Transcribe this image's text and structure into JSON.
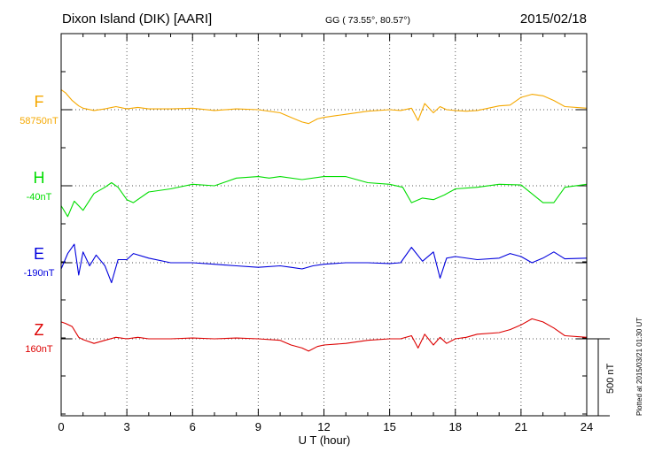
{
  "header": {
    "station": "Dixon Island (DIK)  [AARI]",
    "coords": "GG ( 73.55°,  80.57°)",
    "date": "2015/02/18"
  },
  "footer": {
    "xlabel": "U T (hour)",
    "plotted": "Plotted at 2015/03/21 01:30 UT",
    "scale_label": "500 nT"
  },
  "colors": {
    "F": "#f5a800",
    "H": "#00dd00",
    "E": "#0000dd",
    "Z": "#dd0000"
  },
  "chart_data": {
    "type": "line",
    "x_unit": "hour UT",
    "xlim": [
      0,
      24
    ],
    "xticks": [
      "0",
      "3",
      "6",
      "9",
      "12",
      "15",
      "18",
      "21",
      "24"
    ],
    "scale_nT": 500,
    "series": [
      {
        "key": "F",
        "name": "F",
        "baseline": "58750nT",
        "x": [
          0,
          0.2,
          0.5,
          0.8,
          1,
          1.5,
          2,
          2.5,
          3,
          3.5,
          4,
          5,
          6,
          7,
          8,
          9,
          10,
          10.5,
          11,
          11.3,
          11.7,
          12,
          13,
          14,
          15,
          15.5,
          16,
          16.3,
          16.6,
          17,
          17.3,
          17.6,
          18,
          18.5,
          19,
          20,
          20.5,
          21,
          21.5,
          22,
          22.5,
          23,
          24
        ],
        "y": [
          130,
          110,
          60,
          25,
          10,
          -5,
          5,
          20,
          5,
          15,
          5,
          5,
          10,
          -5,
          5,
          0,
          -20,
          -50,
          -80,
          -90,
          -60,
          -50,
          -30,
          -10,
          0,
          -5,
          10,
          -70,
          40,
          -20,
          20,
          0,
          -5,
          -10,
          -5,
          25,
          30,
          80,
          100,
          90,
          60,
          20,
          10
        ]
      },
      {
        "key": "H",
        "name": "H",
        "baseline": "-40nT",
        "x": [
          0,
          0.3,
          0.6,
          1,
          1.5,
          2,
          2.3,
          2.6,
          3,
          3.3,
          4,
          5,
          6,
          7,
          8,
          9,
          9.5,
          10,
          11,
          12,
          13,
          14,
          15,
          15.6,
          16,
          16.5,
          17,
          17.5,
          18,
          19,
          20,
          21,
          22,
          22.5,
          23,
          24
        ],
        "y": [
          -130,
          -200,
          -100,
          -160,
          -50,
          -10,
          20,
          -10,
          -90,
          -110,
          -40,
          -20,
          10,
          0,
          50,
          60,
          50,
          60,
          40,
          60,
          60,
          20,
          10,
          -10,
          -110,
          -80,
          -90,
          -60,
          -20,
          -10,
          10,
          5,
          -110,
          -110,
          -10,
          10
        ]
      },
      {
        "key": "E",
        "name": "E",
        "baseline": "-190nT",
        "x": [
          0,
          0.3,
          0.6,
          0.8,
          1,
          1.3,
          1.6,
          2,
          2.3,
          2.6,
          3,
          3.3,
          4,
          5,
          6,
          7,
          8,
          9,
          10,
          10.5,
          11,
          11.5,
          12,
          13,
          14,
          15,
          15.5,
          16,
          16.5,
          17,
          17.3,
          17.6,
          18,
          19,
          20,
          20.5,
          21,
          21.5,
          22,
          22.5,
          23,
          24
        ],
        "y": [
          -40,
          60,
          120,
          -80,
          70,
          -20,
          50,
          -20,
          -130,
          20,
          20,
          60,
          30,
          0,
          0,
          -10,
          -20,
          -30,
          -20,
          -30,
          -40,
          -20,
          -10,
          0,
          0,
          -5,
          0,
          100,
          10,
          70,
          -100,
          30,
          40,
          20,
          30,
          60,
          40,
          0,
          30,
          70,
          25,
          30
        ]
      },
      {
        "key": "Z",
        "name": "Z",
        "baseline": "160nT",
        "x": [
          0,
          0.2,
          0.5,
          0.8,
          1,
          1.5,
          2,
          2.5,
          3,
          3.5,
          4,
          5,
          6,
          7,
          8,
          9,
          10,
          10.5,
          11,
          11.3,
          11.7,
          12,
          13,
          14,
          15,
          15.5,
          16,
          16.3,
          16.6,
          17,
          17.3,
          17.6,
          18,
          18.5,
          19,
          20,
          20.5,
          21,
          21.5,
          22,
          22.5,
          23,
          24
        ],
        "y": [
          110,
          100,
          80,
          10,
          -5,
          -30,
          -10,
          10,
          0,
          10,
          0,
          0,
          5,
          0,
          5,
          0,
          -10,
          -40,
          -60,
          -80,
          -50,
          -40,
          -30,
          -10,
          0,
          0,
          20,
          -60,
          30,
          -40,
          10,
          -30,
          0,
          10,
          30,
          40,
          60,
          90,
          130,
          110,
          70,
          20,
          10
        ]
      }
    ]
  }
}
